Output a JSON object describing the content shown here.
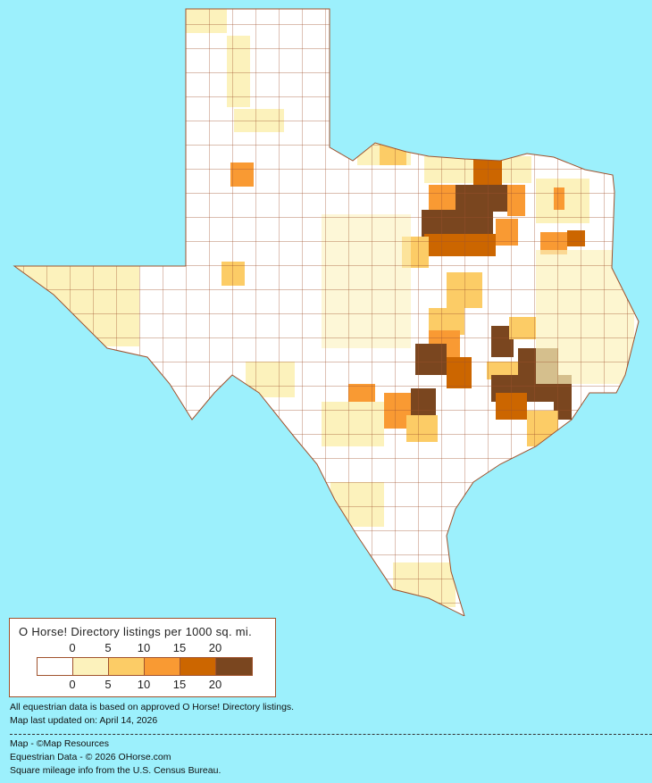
{
  "legend": {
    "title": "O Horse! Directory listings per 1000 sq. mi.",
    "ticks_top": [
      "0",
      "5",
      "10",
      "15",
      "20"
    ],
    "ticks_bottom": [
      "0",
      "5",
      "10",
      "15",
      "20"
    ],
    "bins": [
      {
        "range": "0",
        "color": "#ffffff"
      },
      {
        "range": "0-5",
        "color": "#fcf2bc"
      },
      {
        "range": "5-10",
        "color": "#fccc66"
      },
      {
        "range": "10-15",
        "color": "#f99a33"
      },
      {
        "range": "15-20",
        "color": "#cc6600"
      },
      {
        "range": "20+",
        "color": "#7a461f"
      }
    ]
  },
  "notes": {
    "data_basis": "All equestrian data is based on approved O Horse! Directory listings.",
    "updated": "Map last updated on: April 14, 2026"
  },
  "credits": {
    "map": "Map - ©Map Resources",
    "data": "Equestrian Data - © 2026 OHorse.com",
    "census": "Square mileage info from the U.S. Census Bureau."
  },
  "colors": {
    "background": "#9cf0fc",
    "border": "#a0522d"
  }
}
